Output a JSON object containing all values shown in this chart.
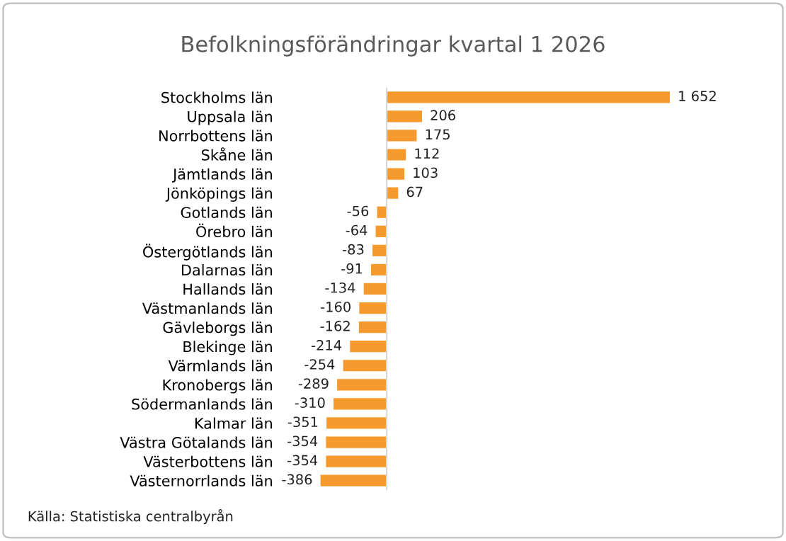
{
  "chart_data": {
    "type": "bar",
    "orientation": "horizontal",
    "title": "Befolkningsförändringar kvartal 1 2026",
    "categories": [
      "Stockholms län",
      "Uppsala län",
      "Norrbottens län",
      "Skåne län",
      "Jämtlands län",
      "Jönköpings län",
      "Gotlands län",
      "Örebro län",
      "Östergötlands län",
      "Dalarnas län",
      "Hallands län",
      "Västmanlands län",
      "Gävleborgs län",
      "Blekinge län",
      "Värmlands län",
      "Kronobergs län",
      "Södermanlands län",
      "Kalmar län",
      "Västra Götalands län",
      "Västerbottens län",
      "Västernorrlands län"
    ],
    "values": [
      1652,
      206,
      175,
      112,
      103,
      67,
      -56,
      -64,
      -83,
      -91,
      -134,
      -160,
      -162,
      -214,
      -254,
      -289,
      -310,
      -351,
      -354,
      -354,
      -386
    ],
    "value_labels": [
      "1 652",
      "206",
      "175",
      "112",
      "103",
      "67",
      "-56",
      "-64",
      "-83",
      "-91",
      "-134",
      "-160",
      "-162",
      "-214",
      "-254",
      "-289",
      "-310",
      "-351",
      "-354",
      "-354",
      "-386"
    ],
    "color": "#f79a2e",
    "tick_labels": "y",
    "grid": false,
    "legend": false,
    "annotations": [
      "Källa: Statistiska centralbyrån"
    ]
  }
}
